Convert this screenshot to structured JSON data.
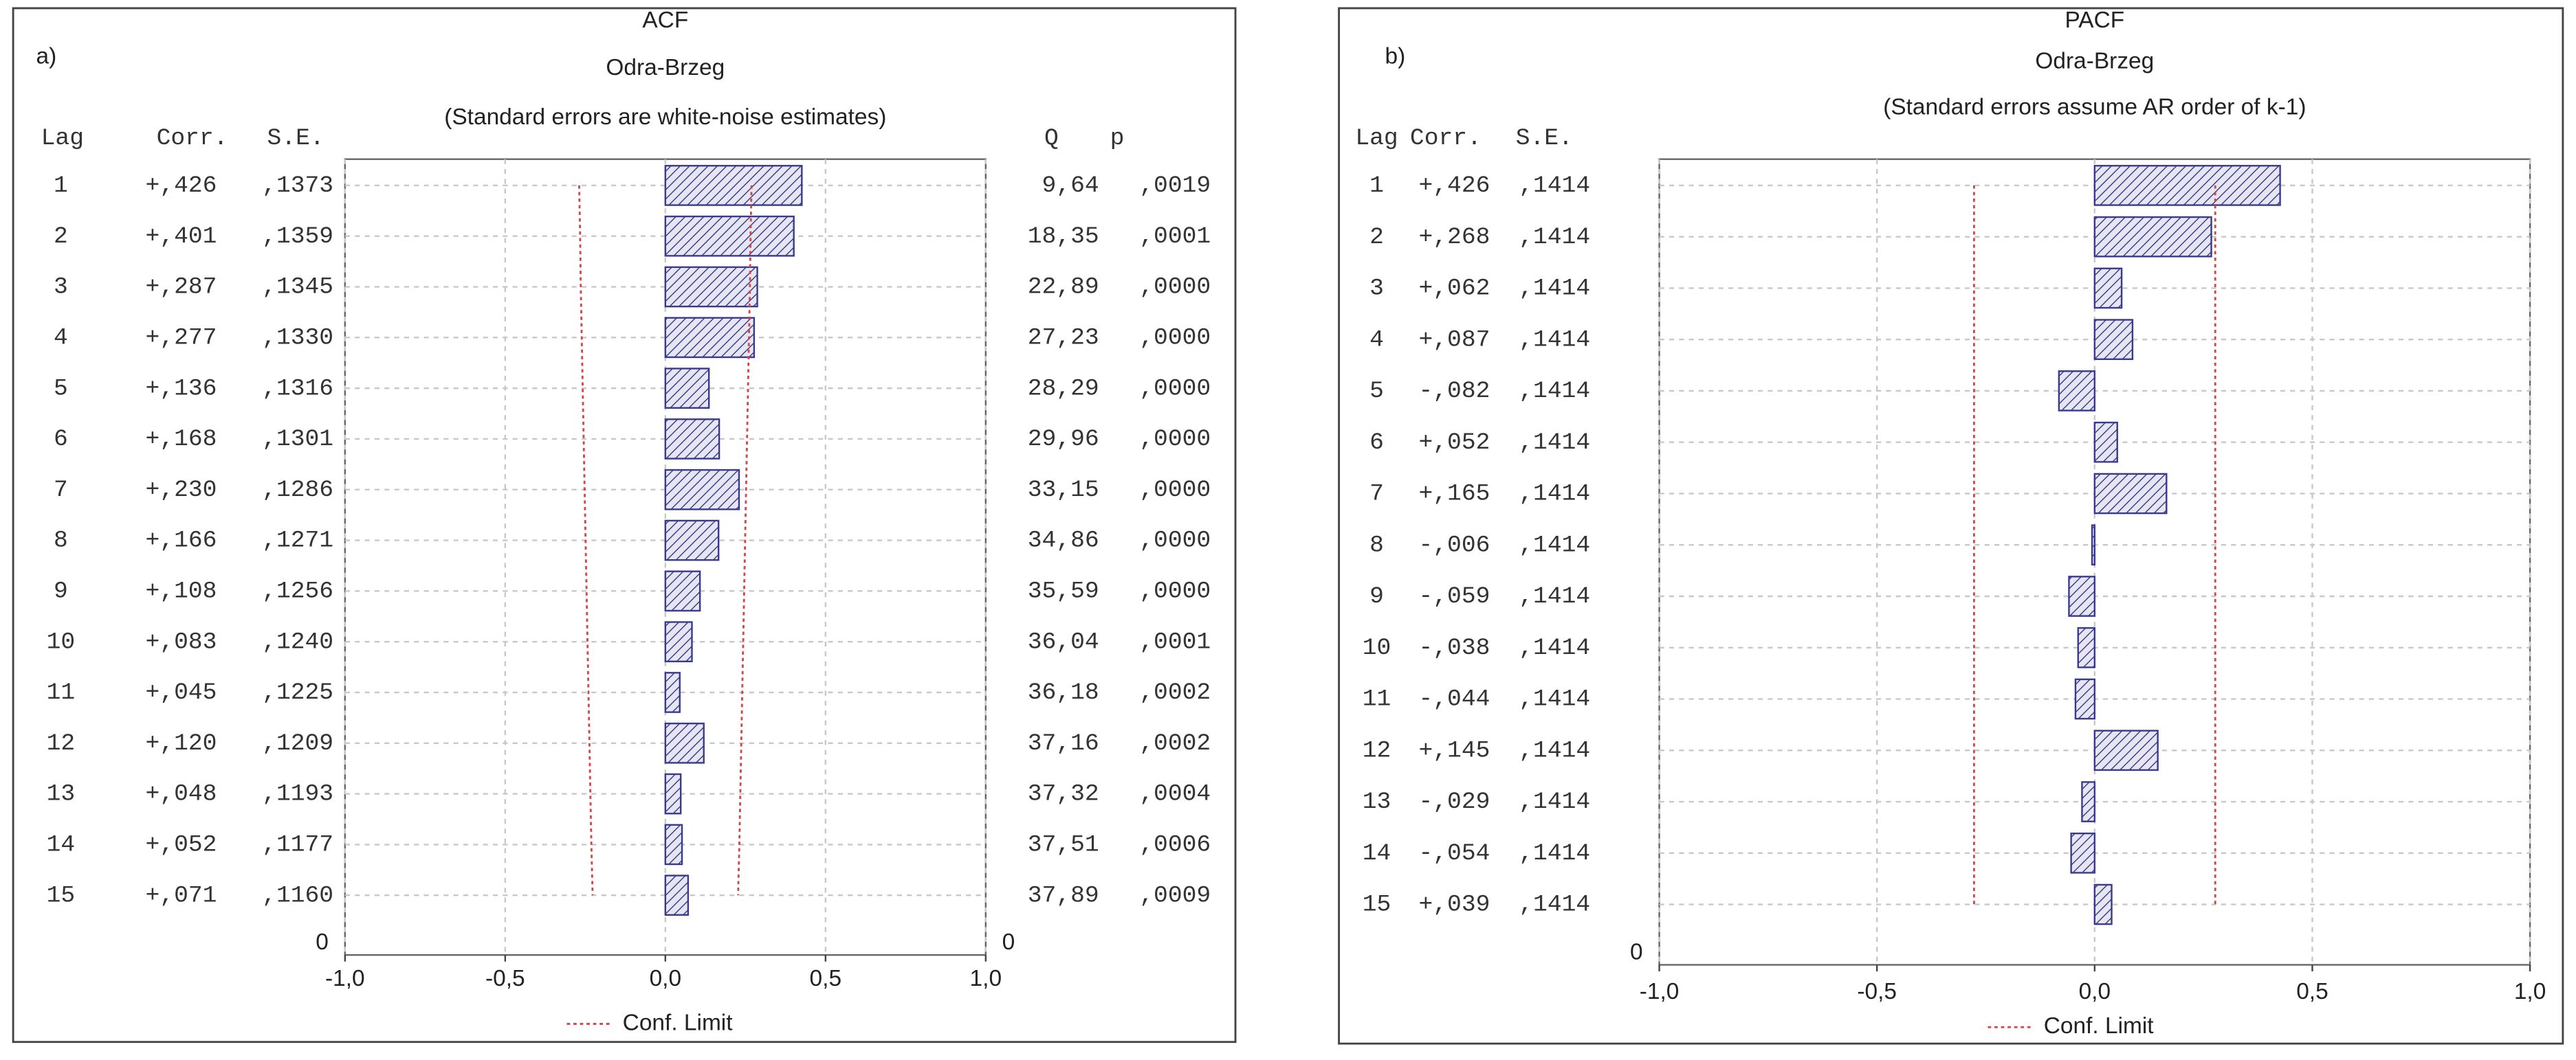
{
  "chart_data": [
    {
      "type": "bar",
      "panel_label": "a)",
      "title": "ACF",
      "subtitle": "Odra-Brzeg",
      "note": "(Standard errors are white-noise estimates)",
      "columns": {
        "lag": "Lag",
        "corr": "Corr.",
        "se": "S.E.",
        "q": "Q",
        "p": "p"
      },
      "categories": [
        1,
        2,
        3,
        4,
        5,
        6,
        7,
        8,
        9,
        10,
        11,
        12,
        13,
        14,
        15
      ],
      "values": [
        0.426,
        0.401,
        0.287,
        0.277,
        0.136,
        0.168,
        0.23,
        0.166,
        0.108,
        0.083,
        0.045,
        0.12,
        0.048,
        0.052,
        0.071
      ],
      "value_labels": [
        "+,426",
        "+,401",
        "+,287",
        "+,277",
        "+,136",
        "+,168",
        "+,230",
        "+,166",
        "+,108",
        "+,083",
        "+,045",
        "+,120",
        "+,048",
        "+,052",
        "+,071"
      ],
      "se": [
        0.1373,
        0.1359,
        0.1345,
        0.133,
        0.1316,
        0.1301,
        0.1286,
        0.1271,
        0.1256,
        0.124,
        0.1225,
        0.1209,
        0.1193,
        0.1177,
        0.116
      ],
      "se_labels": [
        ",1373",
        ",1359",
        ",1345",
        ",1330",
        ",1316",
        ",1301",
        ",1286",
        ",1271",
        ",1256",
        ",1240",
        ",1225",
        ",1209",
        ",1193",
        ",1177",
        ",1160"
      ],
      "q": [
        9.64,
        18.35,
        22.89,
        27.23,
        28.29,
        29.96,
        33.15,
        34.86,
        35.59,
        36.04,
        36.18,
        37.16,
        37.32,
        37.51,
        37.89
      ],
      "q_labels": [
        "9,64",
        "18,35",
        "22,89",
        "27,23",
        "28,29",
        "29,96",
        "33,15",
        "34,86",
        "35,59",
        "36,04",
        "36,18",
        "37,16",
        "37,32",
        "37,51",
        "37,89"
      ],
      "p": [
        0.0019,
        0.0001,
        0,
        0,
        0,
        0,
        0,
        0,
        0,
        0.0001,
        0.0002,
        0.0002,
        0.0004,
        0.0006,
        0.0009
      ],
      "p_labels": [
        ",0019",
        ",0001",
        ",0000",
        ",0000",
        ",0000",
        ",0000",
        ",0000",
        ",0000",
        ",0000",
        ",0001",
        ",0002",
        ",0002",
        ",0004",
        ",0006",
        ",0009"
      ],
      "conf_limit": [
        0.269,
        0.266,
        0.264,
        0.261,
        0.258,
        0.255,
        0.252,
        0.249,
        0.246,
        0.243,
        0.24,
        0.237,
        0.234,
        0.231,
        0.227
      ],
      "legend": "Conf. Limit",
      "conf_color": "#d04848",
      "color": "#3a3a8c",
      "xlim": [
        -1,
        1
      ],
      "xticks": [
        {
          "value": -1,
          "label": "-1,0"
        },
        {
          "value": -0.5,
          "label": "-0,5"
        },
        {
          "value": 0,
          "label": "0,0"
        },
        {
          "value": 0.5,
          "label": "0,5"
        },
        {
          "value": 1,
          "label": "1,0"
        }
      ],
      "yticks": [
        0
      ],
      "grid": true
    },
    {
      "type": "bar",
      "panel_label": "b)",
      "title": "PACF",
      "subtitle": "Odra-Brzeg",
      "note": "(Standard errors assume AR order of k-1)",
      "columns": {
        "lag": "Lag",
        "corr": "Corr.",
        "se": "S.E."
      },
      "categories": [
        1,
        2,
        3,
        4,
        5,
        6,
        7,
        8,
        9,
        10,
        11,
        12,
        13,
        14,
        15
      ],
      "values": [
        0.426,
        0.268,
        0.062,
        0.087,
        -0.082,
        0.052,
        0.165,
        -0.006,
        -0.059,
        -0.038,
        -0.044,
        0.145,
        -0.029,
        -0.054,
        0.039
      ],
      "value_labels": [
        "+,426",
        "+,268",
        "+,062",
        "+,087",
        "-,082",
        "+,052",
        "+,165",
        "-,006",
        "-,059",
        "-,038",
        "-,044",
        "+,145",
        "-,029",
        "-,054",
        "+,039"
      ],
      "se": [
        0.1414,
        0.1414,
        0.1414,
        0.1414,
        0.1414,
        0.1414,
        0.1414,
        0.1414,
        0.1414,
        0.1414,
        0.1414,
        0.1414,
        0.1414,
        0.1414,
        0.1414
      ],
      "se_labels": [
        ",1414",
        ",1414",
        ",1414",
        ",1414",
        ",1414",
        ",1414",
        ",1414",
        ",1414",
        ",1414",
        ",1414",
        ",1414",
        ",1414",
        ",1414",
        ",1414",
        ",1414"
      ],
      "conf_limit": [
        0.277,
        0.277,
        0.277,
        0.277,
        0.277,
        0.277,
        0.277,
        0.277,
        0.277,
        0.277,
        0.277,
        0.277,
        0.277,
        0.277,
        0.277
      ],
      "legend": "Conf. Limit",
      "conf_color": "#d04848",
      "color": "#3a3a8c",
      "xlim": [
        -1,
        1
      ],
      "xticks": [
        {
          "value": -1,
          "label": "-1,0"
        },
        {
          "value": -0.5,
          "label": "-0,5"
        },
        {
          "value": 0,
          "label": "0,0"
        },
        {
          "value": 0.5,
          "label": "0,5"
        },
        {
          "value": 1,
          "label": "1,0"
        }
      ],
      "yticks": [
        0
      ],
      "grid": true
    }
  ]
}
